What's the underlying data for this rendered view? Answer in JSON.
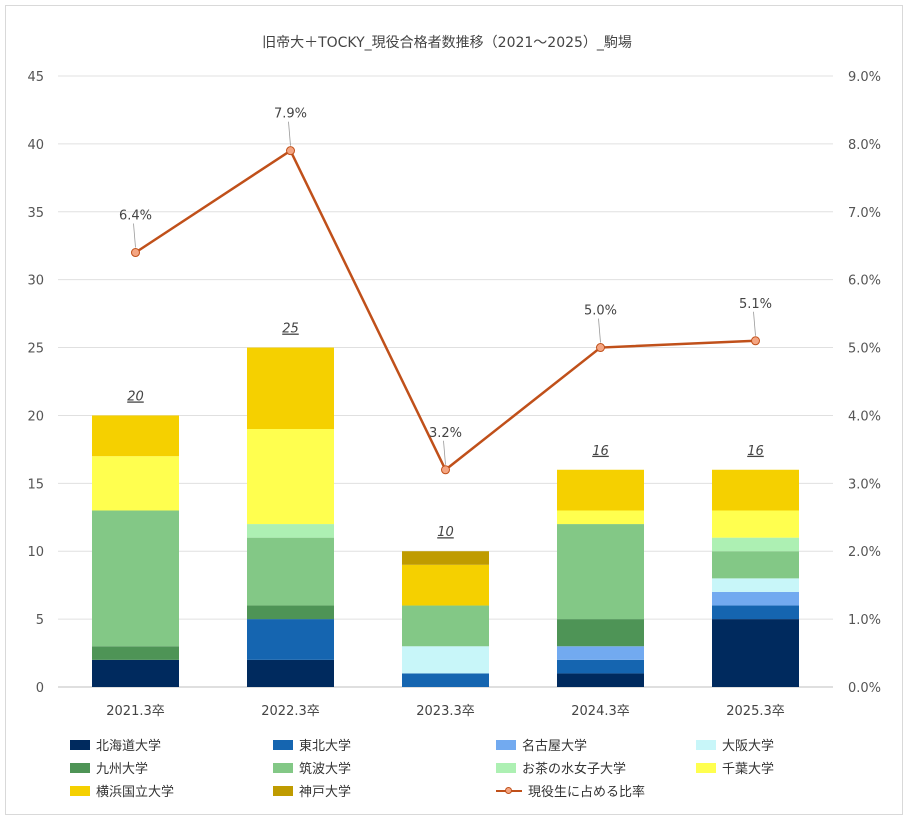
{
  "chart_data": {
    "type": "bar",
    "stacked": true,
    "title": "旧帝大＋TOCKY_現役合格者数推移（2021～2025）_駒場",
    "categories": [
      "2021.3卒",
      "2022.3卒",
      "2023.3卒",
      "2024.3卒",
      "2025.3卒"
    ],
    "ylim": [
      0,
      45
    ],
    "yticks": [
      "0",
      "5",
      "10",
      "15",
      "20",
      "25",
      "30",
      "35",
      "40",
      "45"
    ],
    "y2lim": [
      0,
      9
    ],
    "y2ticks": [
      "0.0%",
      "1.0%",
      "2.0%",
      "3.0%",
      "4.0%",
      "5.0%",
      "6.0%",
      "7.0%",
      "8.0%",
      "9.0%"
    ],
    "grid": true,
    "legend_position": "bottom",
    "series": [
      {
        "name": "北海道大学",
        "color": "#002a5e",
        "values": [
          2,
          2,
          0,
          1,
          5
        ]
      },
      {
        "name": "東北大学",
        "color": "#1565b0",
        "values": [
          0,
          3,
          1,
          1,
          1
        ]
      },
      {
        "name": "名古屋大学",
        "color": "#72aaf0",
        "values": [
          0,
          0,
          0,
          1,
          1
        ]
      },
      {
        "name": "大阪大学",
        "color": "#c8f6f9",
        "values": [
          0,
          0,
          2,
          0,
          1
        ]
      },
      {
        "name": "九州大学",
        "color": "#4e9456",
        "values": [
          1,
          1,
          0,
          2,
          0
        ]
      },
      {
        "name": "筑波大学",
        "color": "#83c886",
        "values": [
          10,
          5,
          3,
          7,
          2
        ]
      },
      {
        "name": "お茶の水女子大学",
        "color": "#adf0b3",
        "values": [
          0,
          1,
          0,
          0,
          1
        ]
      },
      {
        "name": "千葉大学",
        "color": "#ffff4f",
        "values": [
          4,
          7,
          0,
          1,
          2
        ]
      },
      {
        "name": "横浜国立大学",
        "color": "#f5d000",
        "values": [
          3,
          6,
          3,
          3,
          3
        ]
      },
      {
        "name": "神戸大学",
        "color": "#bf9b00",
        "values": [
          0,
          0,
          1,
          0,
          0
        ]
      }
    ],
    "totals": [
      "20",
      "25",
      "10",
      "16",
      "16"
    ],
    "line": {
      "name": "現役生に占める比率",
      "color": "#c0501a",
      "marker_fill": "#f4a582",
      "values": [
        6.4,
        7.9,
        3.2,
        5.0,
        5.1
      ],
      "labels": [
        "6.4%",
        "7.9%",
        "3.2%",
        "5.0%",
        "5.1%"
      ]
    }
  }
}
